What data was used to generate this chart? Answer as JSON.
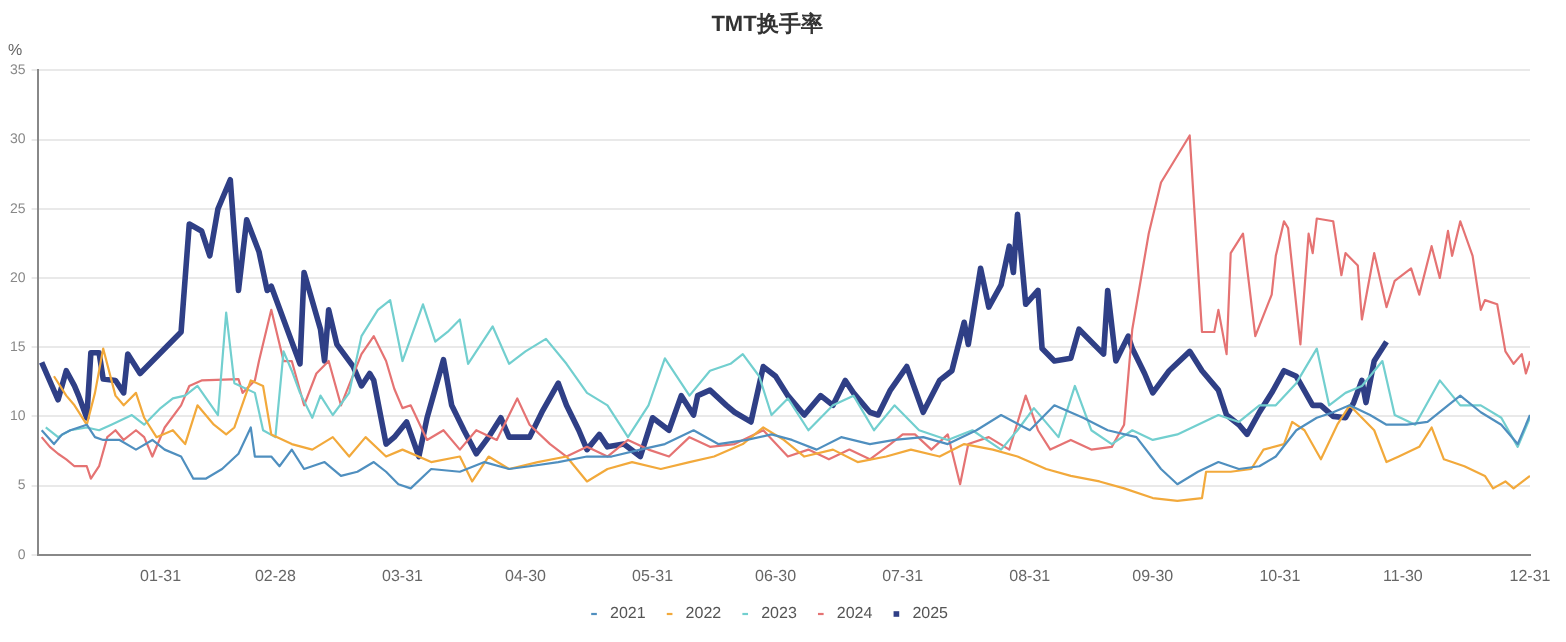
{
  "chart_data": {
    "type": "line",
    "title": "TMT换手率",
    "ylabel": "%",
    "xlim": [
      "--01-01",
      "--12-31"
    ],
    "xticks": [
      {
        "value": "--01-31",
        "label": "01-31"
      },
      {
        "value": "--02-28",
        "label": "02-28"
      },
      {
        "value": "--03-31",
        "label": "03-31"
      },
      {
        "value": "--04-30",
        "label": "04-30"
      },
      {
        "value": "--05-31",
        "label": "05-31"
      },
      {
        "value": "--06-30",
        "label": "06-30"
      },
      {
        "value": "--07-31",
        "label": "07-31"
      },
      {
        "value": "--08-31",
        "label": "08-31"
      },
      {
        "value": "--09-30",
        "label": "09-30"
      },
      {
        "value": "--10-31",
        "label": "10-31"
      },
      {
        "value": "--11-30",
        "label": "11-30"
      },
      {
        "value": "--12-31",
        "label": "12-31"
      }
    ],
    "ylim": [
      0,
      35
    ],
    "yticks": [
      0,
      5,
      10,
      15,
      20,
      25,
      30,
      35
    ],
    "grid": "y",
    "legend": "bottom",
    "marker": "none",
    "line_style": "solid",
    "series": [
      {
        "name": "2021",
        "color": "#4f8fbf",
        "x": [
          "--01-02",
          "--01-05",
          "--01-07",
          "--01-09",
          "--01-13",
          "--01-15",
          "--01-17",
          "--01-21",
          "--01-25",
          "--01-29",
          "--02-01",
          "--02-05",
          "--02-08",
          "--02-11",
          "--02-15",
          "--02-19",
          "--02-22",
          "--02-23",
          "--02-27",
          "--03-01",
          "--03-04",
          "--03-07",
          "--03-12",
          "--03-16",
          "--03-20",
          "--03-24",
          "--03-27",
          "--03-30",
          "--04-02",
          "--04-07",
          "--04-14",
          "--04-20",
          "--04-26",
          "--05-01",
          "--05-08",
          "--05-15",
          "--05-21",
          "--05-28",
          "--06-03",
          "--06-10",
          "--06-16",
          "--06-23",
          "--06-29",
          "--07-04",
          "--07-10",
          "--07-16",
          "--07-23",
          "--07-29",
          "--08-05",
          "--08-11",
          "--08-18",
          "--08-24",
          "--08-31",
          "--09-06",
          "--09-13",
          "--09-19",
          "--09-26",
          "--10-02",
          "--10-06",
          "--10-11",
          "--10-16",
          "--10-21",
          "--10-26",
          "--10-30",
          "--11-04",
          "--11-09",
          "--11-13",
          "--11-17",
          "--11-22",
          "--11-26",
          "--12-01",
          "--12-06",
          "--12-11",
          "--12-14",
          "--12-19",
          "--12-24",
          "--12-28",
          "--12-31"
        ],
        "values": [
          9.0,
          8.0,
          8.7,
          9.0,
          9.4,
          8.5,
          8.3,
          8.3,
          7.6,
          8.3,
          7.6,
          7.1,
          5.5,
          5.5,
          6.2,
          7.3,
          9.2,
          7.1,
          7.1,
          6.4,
          7.6,
          6.2,
          6.7,
          5.7,
          6.0,
          6.7,
          6.0,
          5.1,
          4.8,
          6.2,
          6.0,
          6.7,
          6.2,
          6.4,
          6.7,
          7.1,
          7.1,
          7.6,
          8.0,
          9.0,
          8.0,
          8.3,
          8.7,
          8.3,
          7.6,
          8.5,
          8.0,
          8.3,
          8.5,
          8.0,
          9.0,
          10.1,
          9.0,
          10.8,
          9.9,
          9.0,
          8.5,
          6.2,
          5.1,
          6.0,
          6.7,
          6.2,
          6.4,
          7.1,
          9.0,
          9.9,
          10.3,
          10.8,
          10.1,
          9.4,
          9.4,
          9.6,
          10.8,
          11.5,
          10.3,
          9.4,
          8.0,
          10.1
        ]
      },
      {
        "name": "2022",
        "color": "#f2a93b",
        "x": [
          "--01-05",
          "--01-08",
          "--01-10",
          "--01-13",
          "--01-15",
          "--01-17",
          "--01-20",
          "--01-22",
          "--01-25",
          "--01-27",
          "--01-30",
          "--02-03",
          "--02-06",
          "--02-09",
          "--02-13",
          "--02-16",
          "--02-18",
          "--02-22",
          "--02-25",
          "--02-27",
          "--03-04",
          "--03-09",
          "--03-14",
          "--03-18",
          "--03-22",
          "--03-27",
          "--03-31",
          "--04-07",
          "--04-14",
          "--04-17",
          "--04-21",
          "--04-26",
          "--05-03",
          "--05-10",
          "--05-15",
          "--05-20",
          "--05-26",
          "--06-02",
          "--06-09",
          "--06-15",
          "--06-22",
          "--06-27",
          "--07-02",
          "--07-07",
          "--07-14",
          "--07-20",
          "--07-27",
          "--08-02",
          "--08-09",
          "--08-15",
          "--08-22",
          "--08-28",
          "--09-04",
          "--09-10",
          "--09-17",
          "--09-23",
          "--09-30",
          "--10-06",
          "--10-12",
          "--10-13",
          "--10-19",
          "--10-24",
          "--10-27",
          "--11-01",
          "--11-03",
          "--11-06",
          "--11-10",
          "--11-14",
          "--11-17",
          "--11-20",
          "--11-23",
          "--11-26",
          "--11-29",
          "--12-04",
          "--12-07",
          "--12-10",
          "--12-15",
          "--12-20",
          "--12-22",
          "--12-25",
          "--12-27",
          "--12-31"
        ],
        "values": [
          12.9,
          11.5,
          10.8,
          9.4,
          11.7,
          14.9,
          11.5,
          10.8,
          11.7,
          9.9,
          8.5,
          9.0,
          8.0,
          10.8,
          9.4,
          8.7,
          9.2,
          12.6,
          12.2,
          8.7,
          8.0,
          7.6,
          8.5,
          7.1,
          8.5,
          7.1,
          7.6,
          6.7,
          7.1,
          5.3,
          7.1,
          6.2,
          6.7,
          7.1,
          5.3,
          6.2,
          6.7,
          6.2,
          6.7,
          7.1,
          8.0,
          9.2,
          8.3,
          7.1,
          7.6,
          6.7,
          7.1,
          7.6,
          7.1,
          8.0,
          7.6,
          7.1,
          6.2,
          5.7,
          5.3,
          4.8,
          4.1,
          3.9,
          4.1,
          6.0,
          6.0,
          6.2,
          7.6,
          8.0,
          9.6,
          9.0,
          6.9,
          9.4,
          10.8,
          9.9,
          9.0,
          6.7,
          7.1,
          7.8,
          9.2,
          6.9,
          6.4,
          5.7,
          4.8,
          5.3,
          4.8,
          5.7
        ]
      },
      {
        "name": "2023",
        "color": "#72cfcf",
        "x": [
          "--01-03",
          "--01-06",
          "--01-09",
          "--01-13",
          "--01-16",
          "--01-19",
          "--01-24",
          "--01-27",
          "--01-31",
          "--02-03",
          "--02-06",
          "--02-09",
          "--02-14",
          "--02-16",
          "--02-18",
          "--02-23",
          "--02-25",
          "--02-28",
          "--03-02",
          "--03-04",
          "--03-06",
          "--03-09",
          "--03-11",
          "--03-14",
          "--03-18",
          "--03-21",
          "--03-25",
          "--03-28",
          "--03-31",
          "--04-05",
          "--04-08",
          "--04-11",
          "--04-14",
          "--04-16",
          "--04-22",
          "--04-26",
          "--04-30",
          "--05-05",
          "--05-10",
          "--05-15",
          "--05-20",
          "--05-25",
          "--05-30",
          "--06-03",
          "--06-09",
          "--06-14",
          "--06-19",
          "--06-22",
          "--06-26",
          "--06-29",
          "--07-03",
          "--07-08",
          "--07-14",
          "--07-19",
          "--07-24",
          "--07-29",
          "--08-04",
          "--08-11",
          "--08-17",
          "--08-24",
          "--08-28",
          "--09-01",
          "--09-07",
          "--09-11",
          "--09-15",
          "--09-20",
          "--09-25",
          "--09-30",
          "--10-06",
          "--10-11",
          "--10-16",
          "--10-21",
          "--10-26",
          "--10-30",
          "--11-04",
          "--11-09",
          "--11-12",
          "--11-16",
          "--11-20",
          "--11-25",
          "--11-28",
          "--12-03",
          "--12-09",
          "--12-14",
          "--12-19",
          "--12-24",
          "--12-28",
          "--12-31"
        ],
        "values": [
          9.2,
          8.5,
          9.0,
          9.2,
          9.0,
          9.4,
          10.1,
          9.4,
          10.6,
          11.3,
          11.5,
          12.2,
          10.1,
          17.5,
          12.4,
          11.7,
          9.0,
          8.5,
          14.7,
          13.3,
          11.7,
          9.9,
          11.5,
          10.1,
          11.7,
          15.8,
          17.7,
          18.4,
          14.0,
          18.1,
          15.4,
          16.1,
          17.0,
          13.8,
          16.5,
          13.8,
          14.7,
          15.6,
          13.8,
          11.7,
          10.8,
          8.5,
          10.8,
          14.2,
          11.5,
          13.3,
          13.8,
          14.5,
          12.9,
          10.1,
          11.3,
          9.0,
          10.8,
          11.5,
          9.0,
          10.8,
          9.0,
          8.3,
          9.0,
          7.6,
          9.0,
          10.6,
          8.5,
          12.2,
          9.0,
          8.0,
          9.0,
          8.3,
          8.7,
          9.4,
          10.1,
          9.6,
          10.8,
          10.8,
          12.4,
          14.9,
          10.8,
          11.7,
          12.2,
          14.0,
          10.1,
          9.4,
          12.6,
          10.8,
          10.8,
          9.9,
          7.8,
          9.9
        ]
      },
      {
        "name": "2024",
        "color": "#e57373",
        "x": [
          "--01-02",
          "--01-04",
          "--01-06",
          "--01-08",
          "--01-10",
          "--01-13",
          "--01-14",
          "--01-16",
          "--01-18",
          "--01-20",
          "--01-22",
          "--01-25",
          "--01-27",
          "--01-29",
          "--02-01",
          "--02-05",
          "--02-07",
          "--02-10",
          "--02-19",
          "--02-20",
          "--02-23",
          "--02-24",
          "--02-27",
          "--03-02",
          "--03-04",
          "--03-07",
          "--03-10",
          "--03-13",
          "--03-16",
          "--03-21",
          "--03-24",
          "--03-27",
          "--03-29",
          "--03-31",
          "--04-02",
          "--04-06",
          "--04-10",
          "--04-14",
          "--04-18",
          "--04-23",
          "--04-28",
          "--05-01",
          "--05-06",
          "--05-10",
          "--05-15",
          "--05-20",
          "--05-25",
          "--05-30",
          "--06-04",
          "--06-09",
          "--06-14",
          "--06-20",
          "--06-27",
          "--07-03",
          "--07-08",
          "--07-13",
          "--07-18",
          "--07-23",
          "--07-28",
          "--07-31",
          "--08-03",
          "--08-07",
          "--08-11",
          "--08-14",
          "--08-16",
          "--08-21",
          "--08-26",
          "--08-30",
          "--09-02",
          "--09-05",
          "--09-10",
          "--09-15",
          "--09-20",
          "--09-23",
          "--09-25",
          "--09-29",
          "--10-02",
          "--10-09",
          "--10-12",
          "--10-15",
          "--10-16",
          "--10-18",
          "--10-19",
          "--10-22",
          "--10-25",
          "--10-29",
          "--10-30",
          "--11-01",
          "--11-02",
          "--11-05",
          "--11-07",
          "--11-08",
          "--11-09",
          "--11-13",
          "--11-15",
          "--11-16",
          "--11-19",
          "--11-20",
          "--11-23",
          "--11-26",
          "--11-28",
          "--12-02",
          "--12-04",
          "--12-07",
          "--12-09",
          "--12-11",
          "--12-12",
          "--12-14",
          "--12-17",
          "--12-19",
          "--12-20",
          "--12-23",
          "--12-25",
          "--12-27",
          "--12-29",
          "--12-30",
          "--12-31"
        ],
        "values": [
          8.5,
          7.8,
          7.3,
          6.9,
          6.4,
          6.4,
          5.5,
          6.4,
          8.5,
          9.0,
          8.3,
          9.0,
          8.5,
          7.1,
          9.2,
          10.8,
          12.2,
          12.6,
          12.7,
          11.7,
          12.6,
          14.0,
          17.7,
          14.0,
          14.0,
          10.8,
          13.1,
          14.0,
          10.8,
          14.5,
          15.8,
          14.0,
          12.0,
          10.6,
          10.8,
          8.3,
          9.0,
          7.6,
          9.0,
          8.3,
          11.3,
          9.4,
          8.0,
          7.1,
          7.8,
          7.1,
          8.3,
          7.6,
          7.1,
          8.5,
          7.8,
          8.0,
          9.0,
          7.1,
          7.6,
          6.9,
          7.6,
          6.9,
          8.0,
          8.7,
          8.7,
          7.6,
          8.7,
          5.1,
          8.0,
          8.5,
          7.6,
          11.5,
          9.0,
          7.6,
          8.3,
          7.6,
          7.8,
          9.4,
          16.3,
          23.2,
          26.9,
          30.3,
          16.1,
          16.1,
          17.7,
          14.5,
          21.8,
          23.2,
          15.8,
          18.8,
          21.6,
          24.1,
          23.6,
          15.2,
          23.2,
          21.8,
          24.3,
          24.1,
          20.2,
          21.8,
          20.9,
          17.0,
          21.8,
          17.9,
          19.8,
          20.7,
          18.8,
          22.3,
          20.0,
          23.4,
          21.6,
          24.1,
          21.6,
          17.7,
          18.4,
          18.1,
          14.7,
          13.8,
          14.5,
          13.1,
          14.0
        ]
      },
      {
        "name": "2025",
        "color": "#2f3f86",
        "x": [
          "--01-02",
          "--01-06",
          "--01-08",
          "--01-10",
          "--01-11",
          "--01-13",
          "--01-14",
          "--01-16",
          "--01-17",
          "--01-20",
          "--01-22",
          "--01-23",
          "--01-26",
          "--02-05",
          "--02-07",
          "--02-10",
          "--02-12",
          "--02-14",
          "--02-17",
          "--02-19",
          "--02-21",
          "--02-24",
          "--02-26",
          "--02-27",
          "--03-04",
          "--03-06",
          "--03-07",
          "--03-11",
          "--03-12",
          "--03-13",
          "--03-15",
          "--03-19",
          "--03-21",
          "--03-23",
          "--03-24",
          "--03-27",
          "--03-29",
          "--04-01",
          "--04-04",
          "--04-06",
          "--04-10",
          "--04-12",
          "--04-15",
          "--04-18",
          "--04-21",
          "--04-24",
          "--04-26",
          "--05-01",
          "--05-04",
          "--05-08",
          "--05-10",
          "--05-13",
          "--05-15",
          "--05-18",
          "--05-20",
          "--05-24",
          "--05-28",
          "--05-31",
          "--06-04",
          "--06-07",
          "--06-10",
          "--06-11",
          "--06-14",
          "--06-18",
          "--06-20",
          "--06-24",
          "--06-27",
          "--06-30",
          "--07-03",
          "--07-07",
          "--07-11",
          "--07-14",
          "--07-17",
          "--07-19",
          "--07-23",
          "--07-25",
          "--07-28",
          "--08-01",
          "--08-05",
          "--08-09",
          "--08-12",
          "--08-15",
          "--08-16",
          "--08-19",
          "--08-21",
          "--08-24",
          "--08-26",
          "--08-27",
          "--08-28",
          "--08-30",
          "--09-02",
          "--09-03",
          "--09-06",
          "--09-10",
          "--09-12",
          "--09-15",
          "--09-18",
          "--09-19",
          "--09-21",
          "--09-24",
          "--09-25",
          "--09-28",
          "--09-30",
          "--10-04",
          "--10-09",
          "--10-12",
          "--10-16",
          "--10-18",
          "--10-21",
          "--10-23",
          "--10-26",
          "--10-29",
          "--11-01",
          "--11-04",
          "--11-08",
          "--11-10",
          "--11-13",
          "--11-16",
          "--11-18",
          "--11-20",
          "--11-21",
          "--11-23",
          "--11-26"
        ],
        "values": [
          13.9,
          11.2,
          13.3,
          12.2,
          11.5,
          9.9,
          14.6,
          14.6,
          12.7,
          12.6,
          11.7,
          14.5,
          13.1,
          16.1,
          23.9,
          23.4,
          21.6,
          25.0,
          27.1,
          19.1,
          24.2,
          21.9,
          19.1,
          19.4,
          15.4,
          13.8,
          20.4,
          16.3,
          14.0,
          17.7,
          15.2,
          13.6,
          12.2,
          13.1,
          12.6,
          8.0,
          8.5,
          9.6,
          7.1,
          9.9,
          14.1,
          10.8,
          9.0,
          7.3,
          8.5,
          9.9,
          8.5,
          8.5,
          10.3,
          12.4,
          10.8,
          9.0,
          7.6,
          8.7,
          7.8,
          8.0,
          7.1,
          9.9,
          9.0,
          11.5,
          10.1,
          11.5,
          11.9,
          10.8,
          10.3,
          9.6,
          13.6,
          12.9,
          11.5,
          10.1,
          11.5,
          10.8,
          12.6,
          11.7,
          10.3,
          10.1,
          11.9,
          13.6,
          10.3,
          12.6,
          13.3,
          16.8,
          15.2,
          20.7,
          17.9,
          19.5,
          22.3,
          20.4,
          24.6,
          18.1,
          19.1,
          14.9,
          14.0,
          14.2,
          16.3,
          15.4,
          14.5,
          19.1,
          14.0,
          15.8,
          14.9,
          13.1,
          11.7,
          13.3,
          14.7,
          13.3,
          11.9,
          10.1,
          9.4,
          8.7,
          10.3,
          11.7,
          13.3,
          12.9,
          10.8,
          10.8,
          10.0,
          9.9,
          11.0,
          12.6,
          11.0,
          14.0,
          15.4
        ]
      }
    ]
  }
}
